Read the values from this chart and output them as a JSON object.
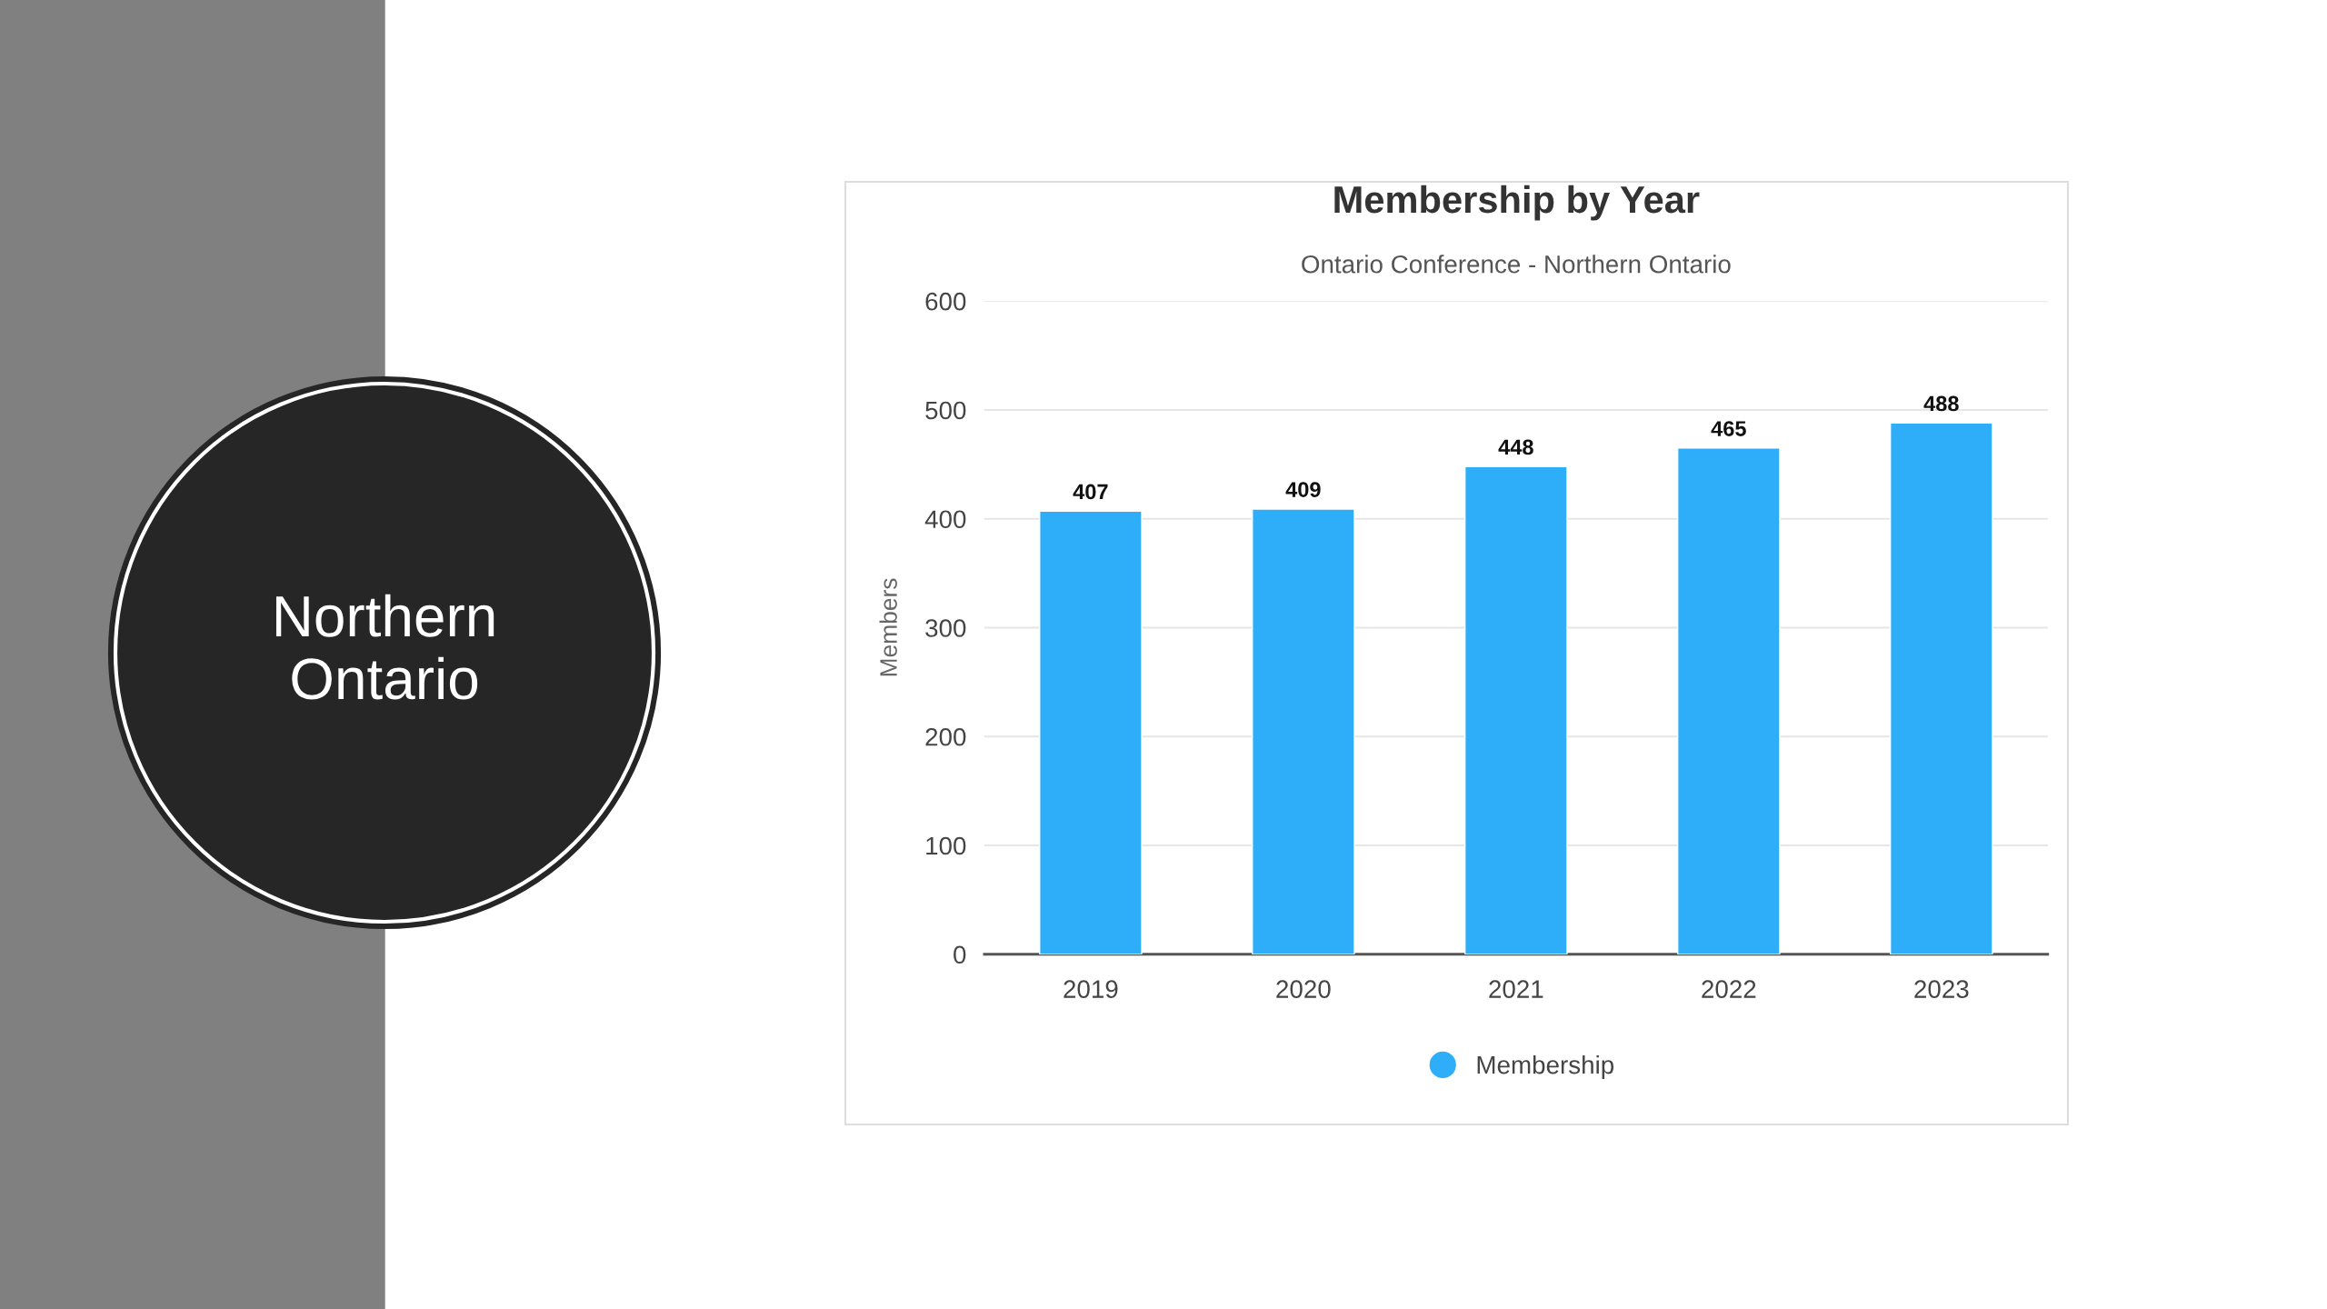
{
  "chart_data": {
    "type": "bar",
    "title": "Membership by Year",
    "subtitle": "Ontario Conference - Northern Ontario",
    "ylabel": "Members",
    "categories": [
      "2019",
      "2020",
      "2021",
      "2022",
      "2023"
    ],
    "series": [
      {
        "name": "Membership",
        "color": "#2eaef8",
        "values": [
          407,
          409,
          448,
          465,
          488
        ]
      }
    ],
    "ylim": [
      0,
      600
    ],
    "yticks": [
      0,
      100,
      200,
      300,
      400,
      500,
      600
    ],
    "grid": "y",
    "legend": "bottom",
    "data_labels": true,
    "annotations": [
      "Northern\nOntario"
    ]
  }
}
